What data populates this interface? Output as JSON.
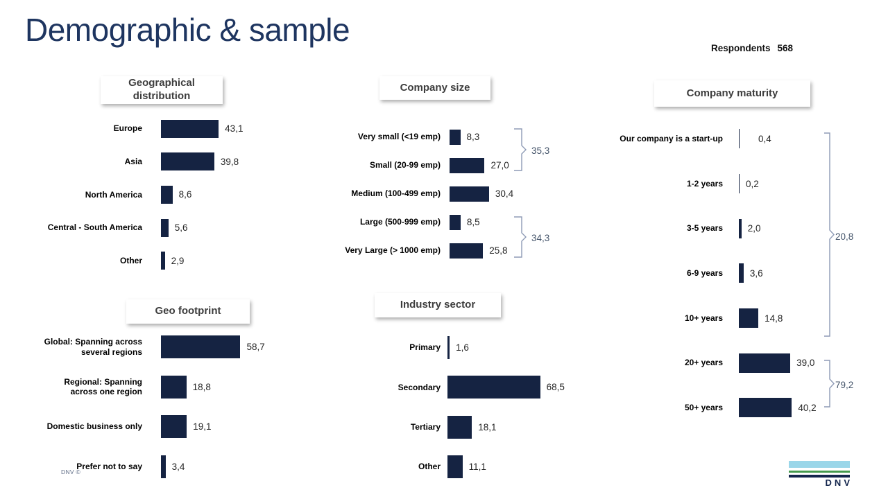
{
  "header": {
    "title": "Demographic & sample",
    "respondents_label": "Respondents",
    "respondents_value": "568"
  },
  "footer": {
    "copyright": "DNV ©",
    "logo_text": "DNV"
  },
  "colors": {
    "bar_navy": "#152342",
    "slide_title": "#1e3560",
    "bracket_line": "#8d9ab5",
    "bracket_text": "#44546a",
    "logo_lightblue": "#9ad6e9",
    "logo_green": "#459a4d",
    "logo_navy": "#13254c"
  },
  "chart_data": [
    {
      "type": "bar",
      "orientation": "horizontal",
      "title": "Geographical distribution",
      "categories": [
        "Europe",
        "Asia",
        "North America",
        "Central - South America",
        "Other"
      ],
      "values": [
        43.1,
        39.8,
        8.6,
        5.6,
        2.9
      ],
      "value_labels": [
        "43,1",
        "39,8",
        "8,6",
        "5,6",
        "2,9"
      ],
      "xlim": [
        0,
        100
      ],
      "grid": false,
      "data_label_position": "outside-end"
    },
    {
      "type": "bar",
      "orientation": "horizontal",
      "title": "Company size",
      "categories": [
        "Very small (<19 emp)",
        "Small (20-99 emp)",
        "Medium (100-499 emp)",
        "Large (500-999 emp)",
        "Very Large (> 1000 emp)"
      ],
      "values": [
        8.3,
        27.0,
        30.4,
        8.5,
        25.8
      ],
      "value_labels": [
        "8,3",
        "27,0",
        "30,4",
        "8,5",
        "25,8"
      ],
      "xlim": [
        0,
        100
      ],
      "grid": false,
      "data_label_position": "outside-end",
      "brackets": [
        {
          "label": "35,3",
          "covers": [
            "Very small (<19 emp)",
            "Small (20-99 emp)"
          ]
        },
        {
          "label": "34,3",
          "covers": [
            "Large (500-999 emp)",
            "Very Large (> 1000 emp)"
          ]
        }
      ]
    },
    {
      "type": "bar",
      "orientation": "horizontal",
      "title": "Company maturity",
      "categories": [
        "Our company is a start-up",
        "1-2 years",
        "3-5 years",
        "6-9 years",
        "10+ years",
        "20+ years",
        "50+ years"
      ],
      "values": [
        0.4,
        0.2,
        2.0,
        3.6,
        14.8,
        39.0,
        40.2
      ],
      "value_labels": [
        "0,4",
        "0,2",
        "2,0",
        "3,6",
        "14,8",
        "39,0",
        "40,2"
      ],
      "xlim": [
        0,
        100
      ],
      "grid": false,
      "data_label_position": "outside-end",
      "brackets": [
        {
          "label": "20,8",
          "covers": [
            "Our company is a start-up",
            "1-2 years",
            "3-5 years",
            "6-9 years",
            "10+ years"
          ]
        },
        {
          "label": "79,2",
          "covers": [
            "20+ years",
            "50+ years"
          ]
        }
      ]
    },
    {
      "type": "bar",
      "orientation": "horizontal",
      "title": "Geo footprint",
      "categories": [
        "Global: Spanning across\nseveral regions",
        "Regional: Spanning\nacross one region",
        "Domestic business only",
        "Prefer not to say"
      ],
      "values": [
        58.7,
        18.8,
        19.1,
        3.4
      ],
      "value_labels": [
        "58,7",
        "18,8",
        "19,1",
        "3,4"
      ],
      "xlim": [
        0,
        100
      ],
      "grid": false,
      "data_label_position": "outside-end"
    },
    {
      "type": "bar",
      "orientation": "horizontal",
      "title": "Industry sector",
      "categories": [
        "Primary",
        "Secondary",
        "Tertiary",
        "Other"
      ],
      "values": [
        1.6,
        68.5,
        18.1,
        11.1
      ],
      "value_labels": [
        "1,6",
        "68,5",
        "18,1",
        "11,1"
      ],
      "xlim": [
        0,
        100
      ],
      "grid": false,
      "data_label_position": "outside-end"
    }
  ]
}
